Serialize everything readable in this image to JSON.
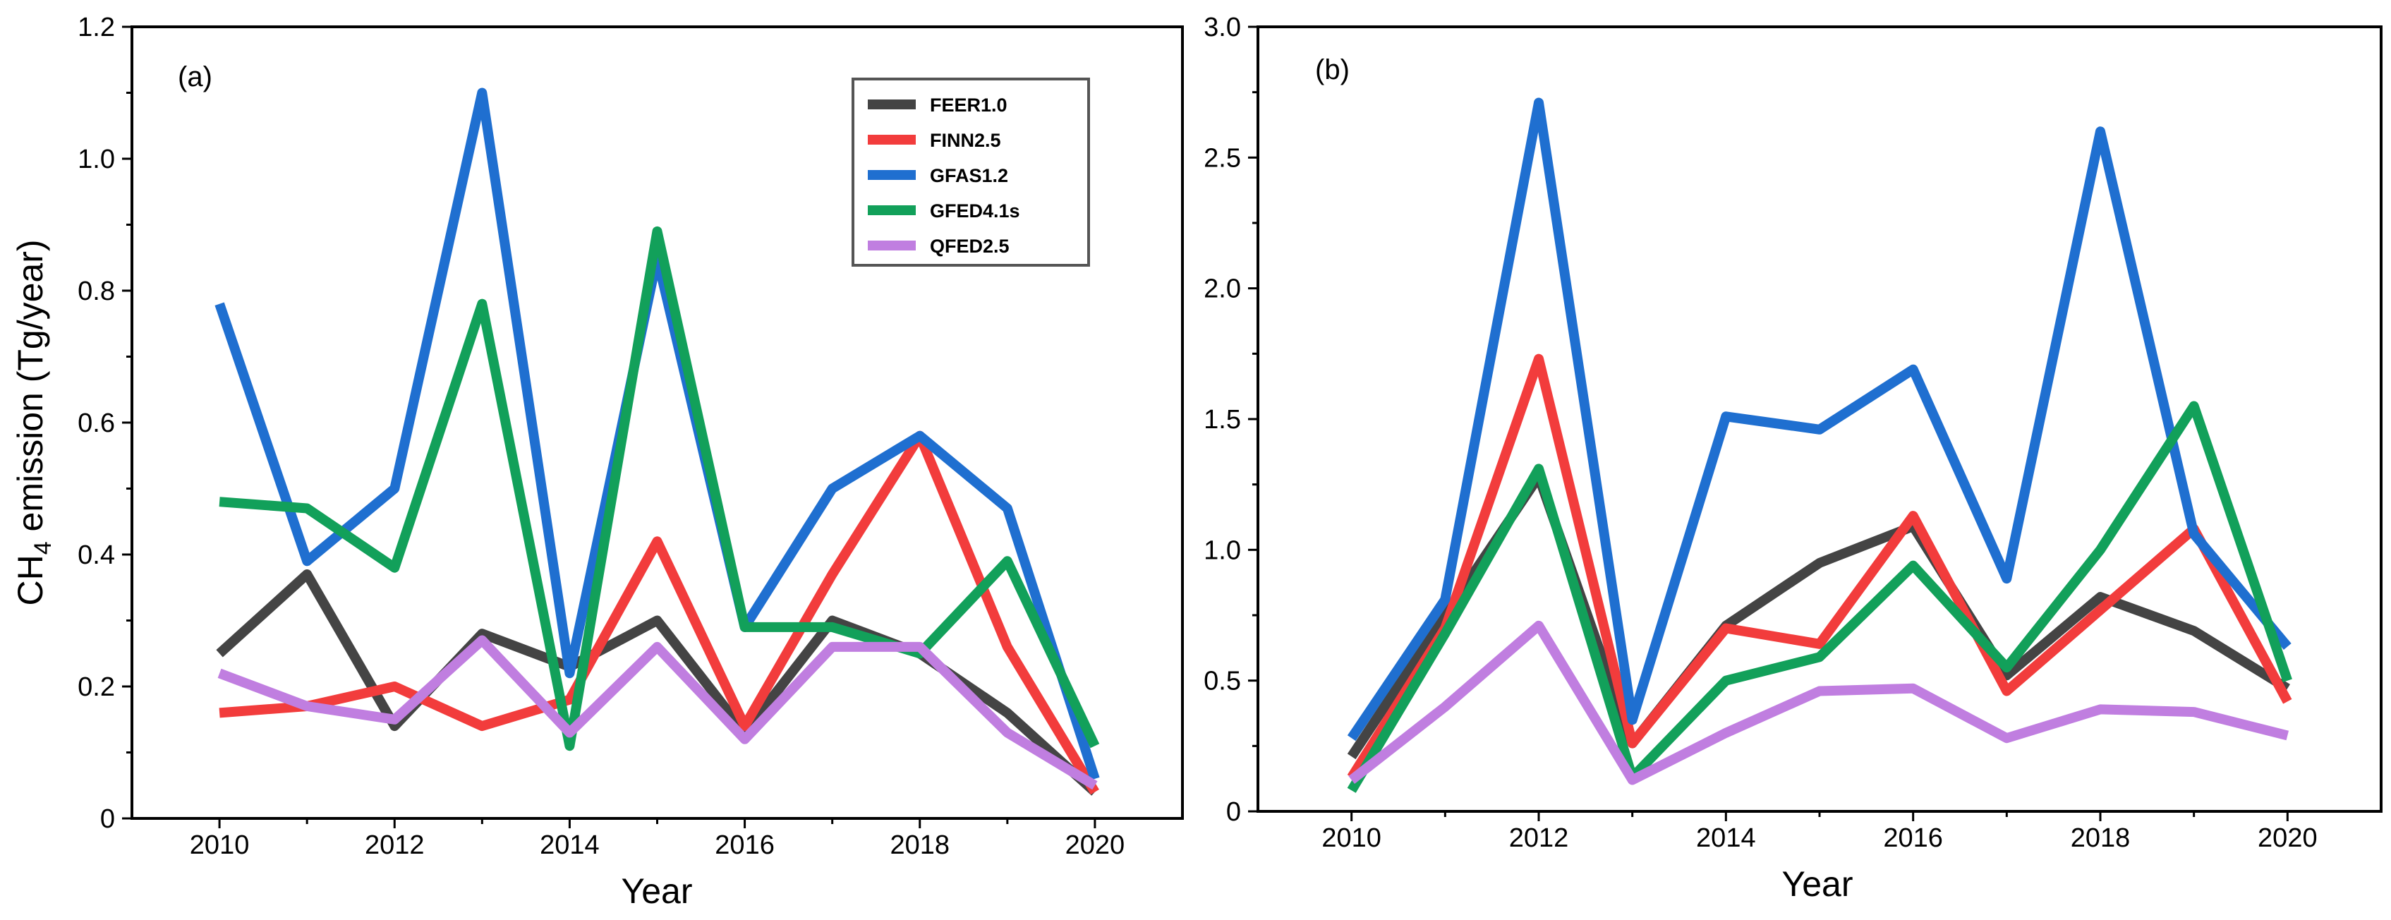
{
  "chart_data": [
    {
      "type": "line",
      "panel_label": "(a)",
      "xlabel": "Year",
      "ylabel_main": "CH",
      "ylabel_sub": "4",
      "ylabel_rest": " emission (Tg/year)",
      "xlim": [
        2009,
        2021
      ],
      "ylim": [
        0,
        1.2
      ],
      "xticks": [
        2010,
        2012,
        2014,
        2016,
        2018,
        2020
      ],
      "yticks": [
        0,
        0.2,
        0.4,
        0.6,
        0.8,
        1.0,
        1.2
      ],
      "ytick_labels": [
        "0",
        "0.2",
        "0.4",
        "0.6",
        "0.8",
        "1.0",
        "1.2"
      ],
      "legend_position": "top-right",
      "x": [
        2010,
        2011,
        2012,
        2013,
        2014,
        2015,
        2016,
        2017,
        2018,
        2019,
        2020
      ],
      "series": [
        {
          "name": "FEER1.0",
          "color": "#444444",
          "values": [
            0.25,
            0.37,
            0.14,
            0.28,
            0.23,
            0.3,
            0.13,
            0.3,
            0.25,
            0.16,
            0.04
          ]
        },
        {
          "name": "FINN2.5",
          "color": "#f23c3c",
          "values": [
            0.16,
            0.17,
            0.2,
            0.14,
            0.18,
            0.42,
            0.14,
            0.37,
            0.58,
            0.26,
            0.04
          ]
        },
        {
          "name": "GFAS1.2",
          "color": "#1f6fd0",
          "values": [
            0.78,
            0.39,
            0.5,
            1.1,
            0.22,
            0.85,
            0.29,
            0.5,
            0.58,
            0.47,
            0.06
          ]
        },
        {
          "name": "GFED4.1s",
          "color": "#12a05a",
          "values": [
            0.48,
            0.47,
            0.38,
            0.78,
            0.11,
            0.89,
            0.29,
            0.29,
            0.25,
            0.39,
            0.11
          ]
        },
        {
          "name": "QFED2.5",
          "color": "#c07ee0",
          "values": [
            0.22,
            0.17,
            0.15,
            0.27,
            0.13,
            0.26,
            0.12,
            0.26,
            0.26,
            0.13,
            0.05
          ]
        }
      ]
    },
    {
      "type": "line",
      "panel_label": "(b)",
      "xlabel": "Year",
      "xlim": [
        2009,
        2021
      ],
      "ylim": [
        0,
        3.0
      ],
      "xticks": [
        2010,
        2012,
        2014,
        2016,
        2018,
        2020
      ],
      "yticks": [
        0,
        0.5,
        1.0,
        1.5,
        2.0,
        2.5,
        3.0
      ],
      "ytick_labels": [
        "0",
        "0.5",
        "1.0",
        "1.5",
        "2.0",
        "2.5",
        "3.0"
      ],
      "x": [
        2010,
        2011,
        2012,
        2013,
        2014,
        2015,
        2016,
        2017,
        2018,
        2019,
        2020
      ],
      "series": [
        {
          "name": "FEER1.0",
          "color": "#444444",
          "values": [
            0.21,
            0.75,
            1.28,
            0.26,
            0.71,
            0.95,
            1.09,
            0.52,
            0.82,
            0.69,
            0.47
          ]
        },
        {
          "name": "FINN2.5",
          "color": "#f23c3c",
          "values": [
            0.13,
            0.7,
            1.73,
            0.26,
            0.7,
            0.64,
            1.13,
            0.46,
            0.77,
            1.08,
            0.42
          ]
        },
        {
          "name": "GFAS1.2",
          "color": "#1f6fd0",
          "values": [
            0.28,
            0.81,
            2.71,
            0.35,
            1.51,
            1.46,
            1.69,
            0.89,
            2.6,
            1.06,
            0.63
          ]
        },
        {
          "name": "GFED4.1s",
          "color": "#12a05a",
          "values": [
            0.08,
            0.68,
            1.31,
            0.13,
            0.5,
            0.59,
            0.94,
            0.55,
            1.0,
            1.55,
            0.5
          ]
        },
        {
          "name": "QFED2.5",
          "color": "#c07ee0",
          "values": [
            0.12,
            0.4,
            0.71,
            0.12,
            0.3,
            0.46,
            0.47,
            0.28,
            0.39,
            0.38,
            0.29
          ]
        }
      ]
    }
  ]
}
